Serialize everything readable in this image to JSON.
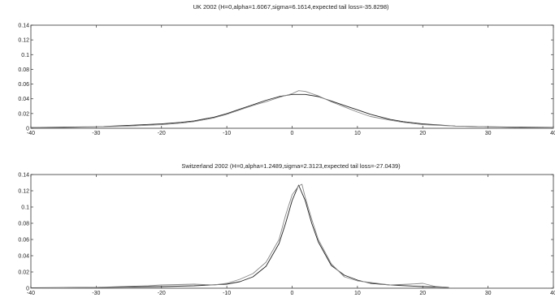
{
  "chart_data": [
    {
      "type": "line",
      "title": "UK 2002 (H=0,alpha=1.6067,sigma=6.1614,expected tail loss=-35.8298)",
      "xlabel": "",
      "ylabel": "",
      "xlim": [
        -40,
        40
      ],
      "ylim": [
        0,
        0.14
      ],
      "xticks": [
        "-40",
        "-30",
        "-20",
        "-10",
        "0",
        "10",
        "20",
        "30",
        "40"
      ],
      "yticks": [
        "0",
        "0.02",
        "0.04",
        "0.06",
        "0.08",
        "0.1",
        "0.12",
        "0.14"
      ],
      "grid": false,
      "series": [
        {
          "color": "#222222",
          "x": [
            -40,
            -35,
            -30,
            -25,
            -20,
            -17,
            -15,
            -12,
            -10,
            -8,
            -6,
            -4,
            -2,
            0,
            2,
            4,
            6,
            8,
            10,
            12,
            15,
            17,
            20,
            25,
            30,
            35,
            40
          ],
          "y": [
            0.001,
            0.0015,
            0.002,
            0.004,
            0.006,
            0.008,
            0.01,
            0.015,
            0.02,
            0.026,
            0.032,
            0.038,
            0.043,
            0.046,
            0.046,
            0.043,
            0.037,
            0.031,
            0.025,
            0.019,
            0.012,
            0.009,
            0.006,
            0.003,
            0.002,
            0.0015,
            0.001
          ]
        },
        {
          "color": "#888888",
          "x": [
            -40,
            -35,
            -30,
            -25,
            -20,
            -17,
            -15,
            -12,
            -10,
            -8,
            -6,
            -4,
            -2,
            0,
            1,
            2,
            4,
            6,
            8,
            10,
            12,
            15,
            17,
            20,
            25,
            30,
            35,
            40
          ],
          "y": [
            0.001,
            0.001,
            0.002,
            0.003,
            0.005,
            0.007,
            0.009,
            0.014,
            0.019,
            0.025,
            0.031,
            0.036,
            0.042,
            0.047,
            0.051,
            0.05,
            0.044,
            0.036,
            0.029,
            0.022,
            0.016,
            0.011,
            0.008,
            0.005,
            0.003,
            0.002,
            0.001,
            0.0005
          ]
        }
      ]
    },
    {
      "type": "line",
      "title": "Switzerland 2002 (H=0,alpha=1.2489,sigma=2.3123,expected tail loss=-27.0439)",
      "xlabel": "",
      "ylabel": "",
      "xlim": [
        -40,
        40
      ],
      "ylim": [
        0,
        0.14
      ],
      "xticks": [
        "-40",
        "-30",
        "-20",
        "-10",
        "0",
        "10",
        "20",
        "30",
        "40"
      ],
      "yticks": [
        "0",
        "0.02",
        "0.04",
        "0.06",
        "0.08",
        "0.1",
        "0.12",
        "0.14"
      ],
      "grid": false,
      "series": [
        {
          "color": "#222222",
          "x": [
            -40,
            -30,
            -20,
            -15,
            -10,
            -8,
            -6,
            -4,
            -2,
            -1,
            0,
            1,
            2,
            3,
            4,
            6,
            8,
            10,
            12,
            15,
            20,
            24
          ],
          "y": [
            0.0005,
            0.001,
            0.002,
            0.003,
            0.005,
            0.008,
            0.014,
            0.027,
            0.055,
            0.08,
            0.108,
            0.127,
            0.108,
            0.08,
            0.057,
            0.028,
            0.016,
            0.01,
            0.006,
            0.004,
            0.002,
            0.001
          ]
        },
        {
          "color": "#888888",
          "x": [
            -40,
            -30,
            -22,
            -20,
            -15,
            -12,
            -10,
            -8,
            -6,
            -4,
            -2,
            -1,
            0,
            1,
            1.5,
            2,
            3,
            4,
            6,
            8,
            10,
            12,
            15,
            18,
            20,
            22,
            24
          ],
          "y": [
            0.0,
            0.001,
            0.003,
            0.004,
            0.005,
            0.004,
            0.006,
            0.011,
            0.018,
            0.032,
            0.06,
            0.09,
            0.115,
            0.126,
            0.128,
            0.112,
            0.085,
            0.06,
            0.03,
            0.014,
            0.009,
            0.007,
            0.004,
            0.005,
            0.006,
            0.002,
            0.001
          ]
        }
      ]
    }
  ]
}
